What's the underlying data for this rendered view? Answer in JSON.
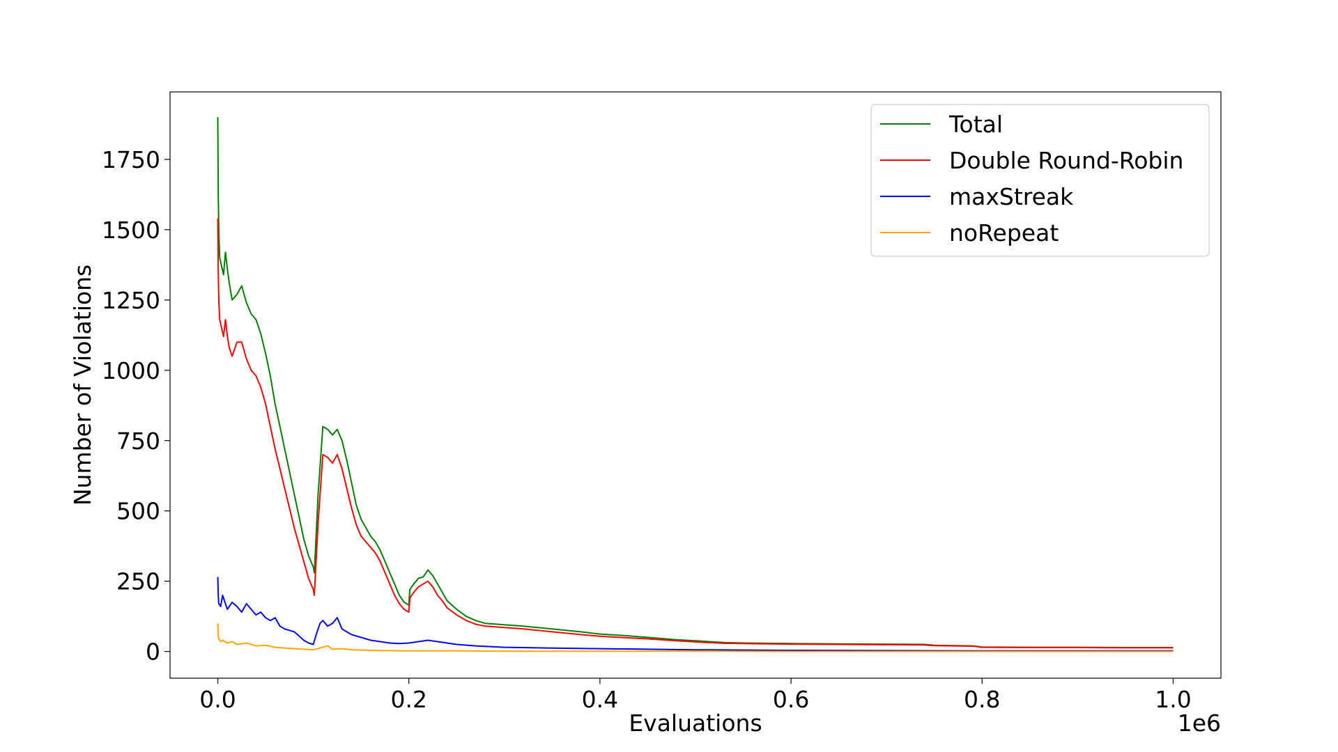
{
  "chart_data": {
    "type": "line",
    "title": "",
    "xlabel": "Evaluations",
    "ylabel": "Number of Violations",
    "x_offset_label": "1e6",
    "xlim": [
      -0.05,
      1.05
    ],
    "ylim": [
      -95,
      1990
    ],
    "x_ticks": [
      0.0,
      0.2,
      0.4,
      0.6,
      0.8,
      1.0
    ],
    "x_tick_labels": [
      "0.0",
      "0.2",
      "0.4",
      "0.6",
      "0.8",
      "1.0"
    ],
    "y_ticks": [
      0,
      250,
      500,
      750,
      1000,
      1250,
      1500,
      1750
    ],
    "y_tick_labels": [
      "0",
      "250",
      "500",
      "750",
      "1000",
      "1250",
      "1500",
      "1750"
    ],
    "grid": false,
    "legend_position": "top-right",
    "series": [
      {
        "name": "Total",
        "color": "#008000",
        "x": [
          0.0,
          0.0005,
          0.001,
          0.002,
          0.004,
          0.006,
          0.008,
          0.01,
          0.012,
          0.015,
          0.02,
          0.025,
          0.03,
          0.035,
          0.04,
          0.045,
          0.05,
          0.055,
          0.06,
          0.065,
          0.07,
          0.075,
          0.08,
          0.085,
          0.09,
          0.095,
          0.1,
          0.101,
          0.105,
          0.11,
          0.115,
          0.12,
          0.125,
          0.13,
          0.135,
          0.14,
          0.145,
          0.15,
          0.155,
          0.16,
          0.165,
          0.17,
          0.175,
          0.18,
          0.185,
          0.19,
          0.195,
          0.2,
          0.201,
          0.205,
          0.21,
          0.215,
          0.22,
          0.225,
          0.23,
          0.235,
          0.24,
          0.25,
          0.26,
          0.27,
          0.28,
          0.3,
          0.32,
          0.35,
          0.38,
          0.4,
          0.42,
          0.45,
          0.48,
          0.5,
          0.53,
          0.55,
          0.6,
          0.65,
          0.7,
          0.74,
          0.75,
          0.79,
          0.8,
          0.85,
          0.9,
          0.95,
          1.0
        ],
        "y": [
          1900,
          1620,
          1500,
          1400,
          1370,
          1340,
          1420,
          1360,
          1310,
          1250,
          1270,
          1300,
          1240,
          1200,
          1180,
          1130,
          1060,
          980,
          880,
          800,
          720,
          640,
          560,
          480,
          400,
          340,
          300,
          280,
          560,
          800,
          790,
          770,
          790,
          750,
          680,
          600,
          520,
          470,
          440,
          410,
          390,
          360,
          320,
          280,
          240,
          200,
          175,
          165,
          220,
          240,
          260,
          265,
          290,
          270,
          240,
          210,
          180,
          150,
          125,
          110,
          100,
          95,
          90,
          80,
          70,
          62,
          58,
          50,
          42,
          38,
          32,
          30,
          28,
          27,
          26,
          25,
          22,
          20,
          16,
          15,
          15,
          14,
          14
        ]
      },
      {
        "name": "Double Round-Robin",
        "color": "#ff0000",
        "x": [
          0.0,
          0.0005,
          0.001,
          0.002,
          0.004,
          0.006,
          0.008,
          0.01,
          0.012,
          0.015,
          0.02,
          0.025,
          0.03,
          0.035,
          0.04,
          0.045,
          0.05,
          0.055,
          0.06,
          0.065,
          0.07,
          0.075,
          0.08,
          0.085,
          0.09,
          0.095,
          0.1,
          0.101,
          0.105,
          0.11,
          0.115,
          0.12,
          0.125,
          0.13,
          0.135,
          0.14,
          0.145,
          0.15,
          0.155,
          0.16,
          0.165,
          0.17,
          0.175,
          0.18,
          0.185,
          0.19,
          0.195,
          0.2,
          0.201,
          0.205,
          0.21,
          0.215,
          0.22,
          0.225,
          0.23,
          0.235,
          0.24,
          0.25,
          0.26,
          0.27,
          0.28,
          0.3,
          0.32,
          0.35,
          0.38,
          0.4,
          0.42,
          0.45,
          0.48,
          0.5,
          0.53,
          0.55,
          0.6,
          0.65,
          0.7,
          0.74,
          0.75,
          0.79,
          0.8,
          0.85,
          0.9,
          0.95,
          1.0
        ],
        "y": [
          1540,
          1350,
          1250,
          1180,
          1150,
          1120,
          1180,
          1120,
          1080,
          1050,
          1100,
          1100,
          1040,
          1000,
          980,
          940,
          880,
          800,
          720,
          650,
          580,
          510,
          440,
          380,
          320,
          260,
          220,
          200,
          460,
          700,
          690,
          670,
          700,
          650,
          580,
          510,
          450,
          410,
          390,
          370,
          350,
          320,
          280,
          240,
          200,
          170,
          150,
          140,
          190,
          210,
          230,
          240,
          250,
          230,
          200,
          180,
          155,
          130,
          110,
          97,
          90,
          85,
          80,
          70,
          60,
          54,
          50,
          45,
          38,
          34,
          29,
          28,
          26,
          25,
          24,
          23,
          21,
          19,
          15,
          14,
          14,
          13,
          13
        ]
      },
      {
        "name": "maxStreak",
        "color": "#0000ff",
        "x": [
          0.0,
          0.0005,
          0.001,
          0.003,
          0.005,
          0.008,
          0.01,
          0.015,
          0.02,
          0.025,
          0.03,
          0.035,
          0.04,
          0.045,
          0.05,
          0.055,
          0.06,
          0.065,
          0.07,
          0.075,
          0.08,
          0.085,
          0.09,
          0.095,
          0.1,
          0.103,
          0.107,
          0.11,
          0.115,
          0.12,
          0.125,
          0.13,
          0.135,
          0.14,
          0.15,
          0.16,
          0.17,
          0.18,
          0.19,
          0.2,
          0.21,
          0.22,
          0.23,
          0.24,
          0.25,
          0.27,
          0.3,
          0.35,
          0.4,
          0.45,
          0.5,
          0.55,
          0.6,
          0.7,
          0.8,
          0.9,
          1.0
        ],
        "y": [
          265,
          200,
          170,
          160,
          200,
          170,
          150,
          175,
          160,
          140,
          170,
          150,
          130,
          140,
          120,
          110,
          120,
          90,
          80,
          75,
          70,
          55,
          40,
          30,
          25,
          60,
          100,
          110,
          90,
          100,
          120,
          80,
          70,
          60,
          50,
          40,
          35,
          30,
          28,
          30,
          35,
          40,
          35,
          30,
          25,
          20,
          15,
          12,
          10,
          8,
          6,
          5,
          4,
          3,
          2,
          2,
          2
        ]
      },
      {
        "name": "noRepeat",
        "color": "#ffa500",
        "x": [
          0.0,
          0.0005,
          0.001,
          0.003,
          0.005,
          0.01,
          0.015,
          0.02,
          0.03,
          0.04,
          0.05,
          0.06,
          0.07,
          0.08,
          0.09,
          0.1,
          0.11,
          0.115,
          0.12,
          0.13,
          0.14,
          0.15,
          0.17,
          0.2,
          0.25,
          0.3,
          0.4,
          0.5,
          0.6,
          0.8,
          1.0
        ],
        "y": [
          100,
          55,
          45,
          35,
          40,
          30,
          35,
          25,
          30,
          20,
          22,
          15,
          12,
          10,
          8,
          6,
          15,
          20,
          8,
          10,
          6,
          5,
          3,
          2,
          2,
          1,
          1,
          1,
          0,
          0,
          0
        ]
      }
    ]
  }
}
